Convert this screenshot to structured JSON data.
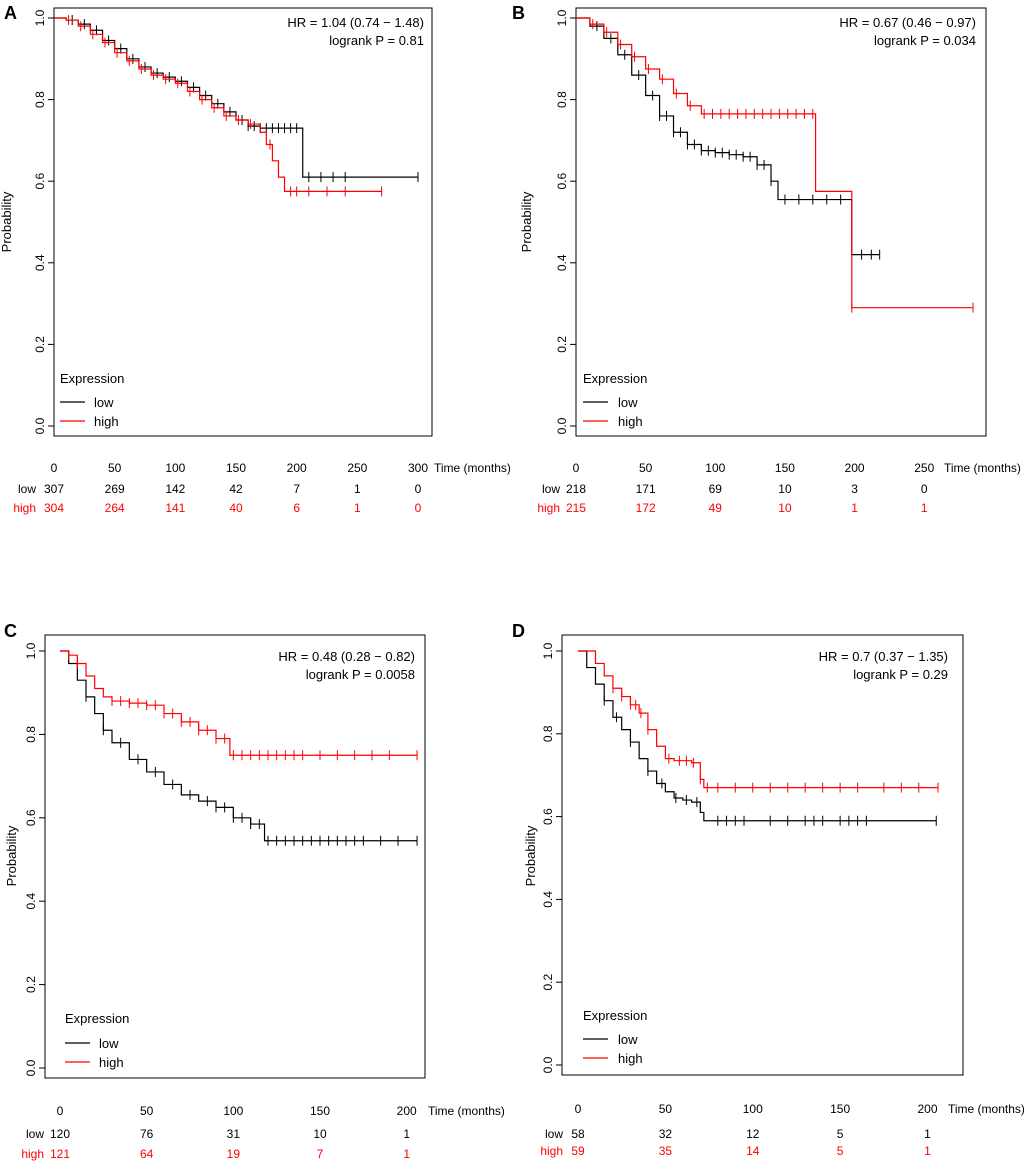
{
  "figure_type": "Kaplan-Meier survival curves",
  "chart_data": [
    {
      "panel_label": "A",
      "type": "line",
      "ylabel": "Probability",
      "xlabel": "Time (months)",
      "xlim": [
        0,
        300
      ],
      "ylim": [
        0,
        1
      ],
      "x_ticks": [
        0,
        50,
        100,
        150,
        200,
        250,
        300
      ],
      "y_ticks": [
        0.0,
        0.2,
        0.4,
        0.6,
        0.8,
        1.0
      ],
      "y_tick_labels": [
        "0.0",
        "0.2",
        "0.4",
        "0.6",
        "0.8",
        "1.0"
      ],
      "hr_text": "HR = 1.04 (0.74 − 1.48)",
      "logrank_text": "logrank P = 0.81",
      "legend": {
        "title": "Expression",
        "entries": [
          "low",
          "high"
        ],
        "position": "bottom-left"
      },
      "at_risk_times": [
        0,
        50,
        100,
        150,
        200,
        250,
        300
      ],
      "series": [
        {
          "name": "low",
          "color": "#000000",
          "at_risk_label": "low",
          "at_risk": [
            "307",
            "269",
            "142",
            "42",
            "7",
            "1",
            "0"
          ],
          "x": [
            0,
            10,
            20,
            30,
            40,
            50,
            60,
            70,
            80,
            90,
            100,
            110,
            120,
            130,
            140,
            150,
            160,
            170,
            180,
            190,
            200,
            205,
            205,
            300
          ],
          "y": [
            1.0,
            0.995,
            0.985,
            0.97,
            0.945,
            0.925,
            0.9,
            0.88,
            0.865,
            0.855,
            0.845,
            0.83,
            0.81,
            0.79,
            0.77,
            0.75,
            0.735,
            0.73,
            0.73,
            0.73,
            0.73,
            0.73,
            0.61,
            0.61
          ],
          "censor_x": [
            15,
            25,
            35,
            45,
            55,
            65,
            75,
            85,
            95,
            105,
            115,
            125,
            135,
            145,
            155,
            160,
            165,
            170,
            175,
            180,
            185,
            190,
            195,
            200,
            210,
            220,
            230,
            240,
            300
          ]
        },
        {
          "name": "high",
          "color": "#ff0000",
          "at_risk_label": "high",
          "at_risk": [
            "304",
            "264",
            "141",
            "40",
            "6",
            "1",
            "0"
          ],
          "x": [
            0,
            10,
            20,
            30,
            40,
            50,
            60,
            70,
            80,
            90,
            100,
            110,
            120,
            130,
            140,
            150,
            160,
            170,
            175,
            180,
            185,
            190,
            270
          ],
          "y": [
            1.0,
            0.995,
            0.98,
            0.96,
            0.94,
            0.915,
            0.895,
            0.875,
            0.86,
            0.85,
            0.84,
            0.82,
            0.8,
            0.78,
            0.76,
            0.75,
            0.74,
            0.72,
            0.69,
            0.65,
            0.61,
            0.575,
            0.575
          ],
          "censor_x": [
            12,
            22,
            32,
            42,
            52,
            62,
            72,
            82,
            92,
            102,
            112,
            122,
            132,
            142,
            152,
            162,
            178,
            195,
            200,
            210,
            225,
            240,
            270
          ]
        }
      ]
    },
    {
      "panel_label": "B",
      "type": "line",
      "ylabel": "Probability",
      "xlabel": "Time (months)",
      "xlim": [
        0,
        285
      ],
      "ylim": [
        0,
        1
      ],
      "x_ticks": [
        0,
        50,
        100,
        150,
        200,
        250
      ],
      "y_ticks": [
        0.0,
        0.2,
        0.4,
        0.6,
        0.8,
        1.0
      ],
      "y_tick_labels": [
        "0.0",
        "0.2",
        "0.4",
        "0.6",
        "0.8",
        "1.0"
      ],
      "hr_text": "HR = 0.67 (0.46 − 0.97)",
      "logrank_text": "logrank P = 0.034",
      "legend": {
        "title": "Expression",
        "entries": [
          "low",
          "high"
        ],
        "position": "bottom-left"
      },
      "at_risk_times": [
        0,
        50,
        100,
        150,
        200,
        250
      ],
      "series": [
        {
          "name": "low",
          "color": "#000000",
          "at_risk_label": "low",
          "at_risk": [
            "218",
            "171",
            "69",
            "10",
            "3",
            "0"
          ],
          "x": [
            0,
            10,
            20,
            30,
            40,
            50,
            60,
            70,
            80,
            90,
            100,
            110,
            120,
            130,
            140,
            145,
            198,
            198,
            218
          ],
          "y": [
            1.0,
            0.98,
            0.95,
            0.91,
            0.86,
            0.81,
            0.76,
            0.72,
            0.69,
            0.675,
            0.67,
            0.665,
            0.66,
            0.64,
            0.6,
            0.555,
            0.555,
            0.42,
            0.42
          ],
          "censor_x": [
            15,
            25,
            35,
            45,
            55,
            60,
            65,
            70,
            75,
            80,
            85,
            90,
            95,
            100,
            105,
            110,
            115,
            120,
            125,
            130,
            135,
            140,
            150,
            160,
            170,
            180,
            190,
            205,
            212,
            218
          ]
        },
        {
          "name": "high",
          "color": "#ff0000",
          "at_risk_label": "high",
          "at_risk": [
            "215",
            "172",
            "49",
            "10",
            "1",
            "1"
          ],
          "x": [
            0,
            10,
            20,
            30,
            40,
            50,
            60,
            70,
            80,
            90,
            172,
            172,
            198,
            198,
            285
          ],
          "y": [
            1.0,
            0.985,
            0.965,
            0.935,
            0.905,
            0.875,
            0.85,
            0.815,
            0.785,
            0.765,
            0.765,
            0.575,
            0.575,
            0.29,
            0.29
          ],
          "censor_x": [
            12,
            22,
            32,
            42,
            52,
            62,
            72,
            82,
            92,
            98,
            104,
            110,
            116,
            122,
            128,
            134,
            140,
            146,
            152,
            158,
            164,
            170,
            198,
            285
          ]
        }
      ]
    },
    {
      "panel_label": "C",
      "type": "line",
      "ylabel": "Probability",
      "xlabel": "Time (months)",
      "xlim": [
        0,
        210
      ],
      "ylim": [
        0,
        1
      ],
      "x_ticks": [
        0,
        50,
        100,
        150,
        200
      ],
      "y_ticks": [
        0.0,
        0.2,
        0.4,
        0.6,
        0.8,
        1.0
      ],
      "y_tick_labels": [
        "0.0",
        "0.2",
        "0.4",
        "0.6",
        "0.8",
        "1.0"
      ],
      "hr_text": "HR = 0.48 (0.28 − 0.82)",
      "logrank_text": "logrank P = 0.0058",
      "legend": {
        "title": "Expression",
        "entries": [
          "low",
          "high"
        ],
        "position": "bottom-left"
      },
      "at_risk_times": [
        0,
        50,
        100,
        150,
        200
      ],
      "series": [
        {
          "name": "low",
          "color": "#000000",
          "at_risk_label": "low",
          "at_risk": [
            "120",
            "76",
            "31",
            "10",
            "1"
          ],
          "x": [
            0,
            5,
            10,
            15,
            20,
            25,
            30,
            40,
            50,
            60,
            70,
            80,
            90,
            100,
            110,
            118,
            206
          ],
          "y": [
            1.0,
            0.97,
            0.93,
            0.89,
            0.85,
            0.81,
            0.78,
            0.74,
            0.71,
            0.68,
            0.655,
            0.64,
            0.625,
            0.6,
            0.585,
            0.545,
            0.545
          ],
          "censor_x": [
            15,
            25,
            35,
            45,
            55,
            65,
            75,
            85,
            90,
            95,
            100,
            105,
            110,
            115,
            120,
            125,
            130,
            135,
            140,
            145,
            150,
            155,
            160,
            165,
            170,
            175,
            185,
            195,
            206
          ]
        },
        {
          "name": "high",
          "color": "#ff0000",
          "at_risk_label": "high",
          "at_risk": [
            "121",
            "64",
            "19",
            "7",
            "1"
          ],
          "x": [
            0,
            5,
            10,
            15,
            20,
            25,
            30,
            40,
            50,
            60,
            70,
            80,
            90,
            98,
            98,
            206
          ],
          "y": [
            1.0,
            0.99,
            0.97,
            0.94,
            0.91,
            0.89,
            0.88,
            0.875,
            0.87,
            0.85,
            0.83,
            0.81,
            0.79,
            0.79,
            0.75,
            0.75
          ],
          "censor_x": [
            5,
            10,
            30,
            35,
            40,
            45,
            50,
            55,
            60,
            65,
            70,
            75,
            80,
            85,
            90,
            95,
            100,
            105,
            110,
            115,
            120,
            125,
            130,
            135,
            140,
            150,
            160,
            170,
            180,
            190,
            206
          ]
        }
      ]
    },
    {
      "panel_label": "D",
      "type": "line",
      "ylabel": "Probability",
      "xlabel": "Time (months)",
      "xlim": [
        0,
        210
      ],
      "ylim": [
        0,
        1
      ],
      "x_ticks": [
        0,
        50,
        100,
        150,
        200
      ],
      "y_ticks": [
        0.0,
        0.2,
        0.4,
        0.6,
        0.8,
        1.0
      ],
      "y_tick_labels": [
        "0.0",
        "0.2",
        "0.4",
        "0.6",
        "0.8",
        "1.0"
      ],
      "hr_text": "HR = 0.7 (0.37 − 1.35)",
      "logrank_text": "logrank P = 0.29",
      "legend": {
        "title": "Expression",
        "entries": [
          "low",
          "high"
        ],
        "position": "bottom-left"
      },
      "at_risk_times": [
        0,
        50,
        100,
        150,
        200
      ],
      "series": [
        {
          "name": "low",
          "color": "#000000",
          "at_risk_label": "low",
          "at_risk": [
            "58",
            "32",
            "12",
            "5",
            "1"
          ],
          "x": [
            0,
            5,
            10,
            15,
            20,
            25,
            30,
            35,
            40,
            45,
            50,
            55,
            60,
            65,
            70,
            72,
            205
          ],
          "y": [
            1.0,
            0.96,
            0.92,
            0.88,
            0.84,
            0.81,
            0.78,
            0.74,
            0.71,
            0.68,
            0.66,
            0.645,
            0.64,
            0.635,
            0.61,
            0.59,
            0.59
          ],
          "censor_x": [
            15,
            22,
            30,
            40,
            48,
            56,
            62,
            68,
            80,
            85,
            90,
            95,
            110,
            120,
            130,
            135,
            140,
            150,
            155,
            160,
            165,
            205
          ]
        },
        {
          "name": "high",
          "color": "#ff0000",
          "at_risk_label": "high",
          "at_risk": [
            "59",
            "35",
            "14",
            "5",
            "1"
          ],
          "x": [
            0,
            10,
            15,
            20,
            25,
            30,
            35,
            40,
            45,
            50,
            55,
            60,
            65,
            70,
            72,
            206
          ],
          "y": [
            1.0,
            0.97,
            0.94,
            0.91,
            0.89,
            0.87,
            0.85,
            0.81,
            0.77,
            0.74,
            0.735,
            0.735,
            0.73,
            0.69,
            0.67,
            0.67
          ],
          "censor_x": [
            20,
            25,
            30,
            33,
            36,
            40,
            52,
            58,
            62,
            66,
            70,
            74,
            80,
            90,
            100,
            110,
            120,
            130,
            140,
            150,
            160,
            175,
            185,
            195,
            206
          ]
        }
      ]
    }
  ]
}
